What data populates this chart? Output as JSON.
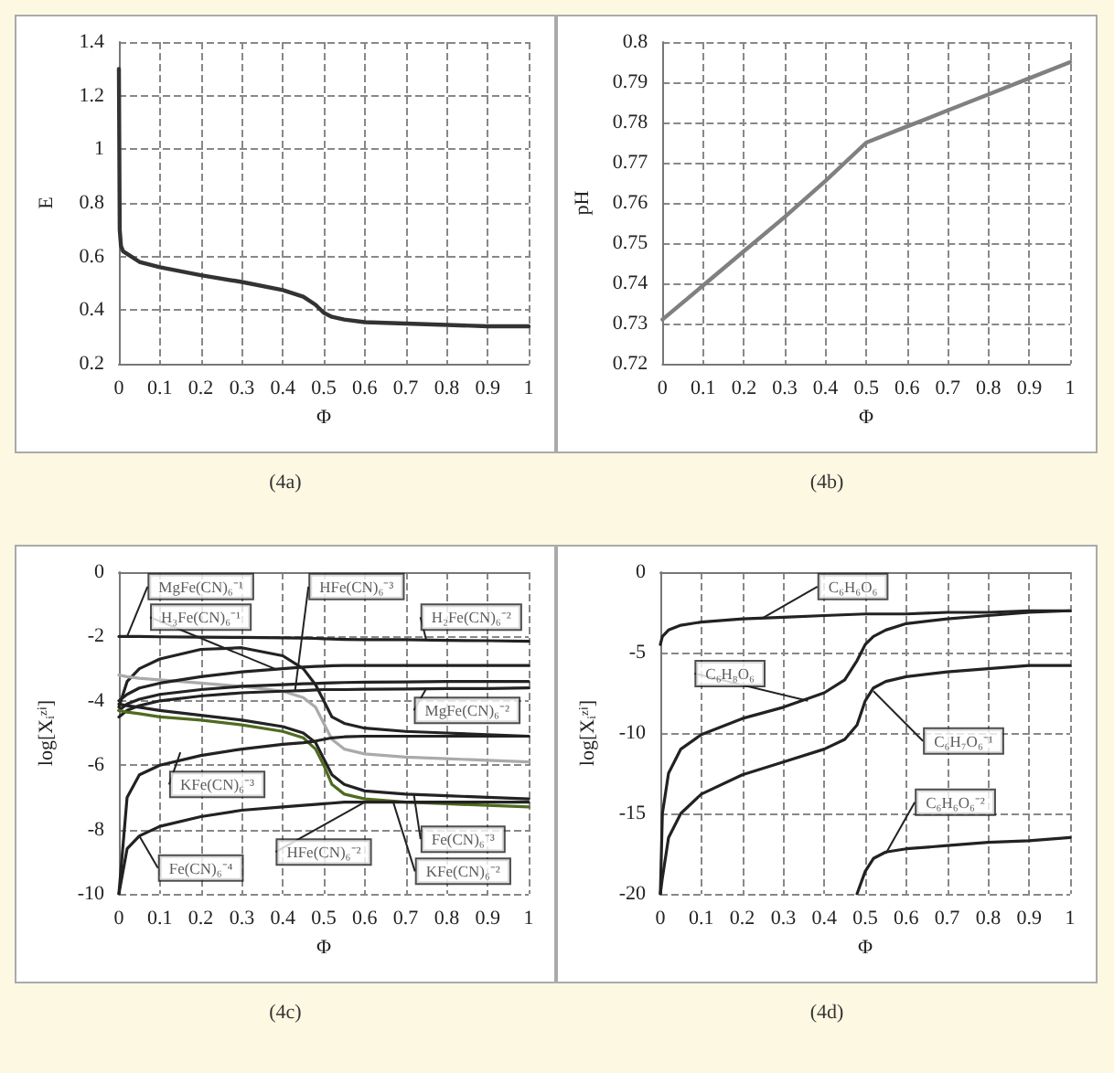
{
  "chart_data": [
    {
      "type": "line",
      "xlabel": "Φ",
      "ylabel": "E",
      "annotations": [
        "(4a)"
      ],
      "grid": true,
      "marker": "none",
      "line_style": "solid",
      "xlim": [
        0,
        1
      ],
      "xticks": [
        0,
        0.1,
        0.2,
        0.3,
        0.4,
        0.5,
        0.6,
        0.7,
        0.8,
        0.9,
        1
      ],
      "ylim": [
        0.2,
        1.4
      ],
      "yticks": [
        0.2,
        0.4,
        0.6,
        0.8,
        1,
        1.2,
        1.4
      ],
      "series": [
        {
          "color": "#333333",
          "x": [
            0,
            0.002,
            0.005,
            0.01,
            0.03,
            0.05,
            0.1,
            0.2,
            0.3,
            0.4,
            0.45,
            0.48,
            0.5,
            0.52,
            0.55,
            0.6,
            0.7,
            0.8,
            0.9,
            1
          ],
          "values": [
            1.3,
            0.7,
            0.64,
            0.62,
            0.6,
            0.58,
            0.56,
            0.53,
            0.505,
            0.475,
            0.45,
            0.42,
            0.39,
            0.375,
            0.365,
            0.355,
            0.35,
            0.345,
            0.34,
            0.34
          ]
        }
      ]
    },
    {
      "type": "line",
      "xlabel": "Φ",
      "ylabel": "pH",
      "annotations": [
        "(4b)"
      ],
      "grid": true,
      "marker": "none",
      "line_style": "solid",
      "xlim": [
        0,
        1
      ],
      "xticks": [
        0,
        0.1,
        0.2,
        0.3,
        0.4,
        0.5,
        0.6,
        0.7,
        0.8,
        0.9,
        1
      ],
      "ylim": [
        0.72,
        0.8
      ],
      "yticks": [
        0.72,
        0.73,
        0.74,
        0.75,
        0.76,
        0.77,
        0.78,
        0.79,
        0.8
      ],
      "series": [
        {
          "color": "#808080",
          "x": [
            0,
            0.1,
            0.2,
            0.3,
            0.4,
            0.5,
            0.6,
            0.7,
            0.8,
            0.9,
            1
          ],
          "values": [
            0.731,
            0.7395,
            0.748,
            0.7565,
            0.7655,
            0.775,
            0.779,
            0.783,
            0.787,
            0.791,
            0.795
          ]
        }
      ]
    },
    {
      "type": "line",
      "xlabel": "Φ",
      "ylabel": "log[Xᵢᶻⁱ]",
      "grid": true,
      "marker": "none",
      "line_style": "solid",
      "annotations": [
        "(4c)",
        {
          "text": "MgFe(CN)₆⁻¹",
          "x": 0.02,
          "y": -2
        },
        {
          "text": "H₃Fe(CN)₆⁻¹",
          "x": 0.38,
          "y": -3
        },
        {
          "text": "HFe(CN)₆⁻³",
          "x": 0.43,
          "y": -3.68
        },
        {
          "text": "H₂Fe(CN)₆⁻²",
          "x": 0.75,
          "y": -2.1
        },
        {
          "text": "MgFe(CN)₆⁻²",
          "x": 0.75,
          "y": -3.62
        },
        {
          "text": "KFe(CN)₆⁻³",
          "x": 0.15,
          "y": -5.6
        },
        {
          "text": "Fe(CN)₆⁻⁴",
          "x": 0.05,
          "y": -8.2
        },
        {
          "text": "HFe(CN)₆⁻²",
          "x": 0.6,
          "y": -7.15
        },
        {
          "text": "Fe(CN)₆⁻³",
          "x": 0.72,
          "y": -6.92
        },
        {
          "text": "KFe(CN)₆⁻²",
          "x": 0.67,
          "y": -7.17
        }
      ],
      "xlim": [
        0,
        1
      ],
      "xticks": [
        0,
        0.1,
        0.2,
        0.3,
        0.4,
        0.5,
        0.6,
        0.7,
        0.8,
        0.9,
        1
      ],
      "ylim": [
        -10,
        0
      ],
      "yticks": [
        -10,
        -8,
        -6,
        -4,
        -2,
        0
      ],
      "x": [
        0,
        0.02,
        0.05,
        0.1,
        0.2,
        0.3,
        0.4,
        0.45,
        0.48,
        0.5,
        0.52,
        0.55,
        0.6,
        0.7,
        0.8,
        0.9,
        1
      ],
      "series": [
        {
          "color": "#222222",
          "values": [
            -2.0,
            -2.0,
            -2.0,
            -2.01,
            -2.02,
            -2.03,
            -2.04,
            -2.05,
            -2.06,
            -2.07,
            -2.08,
            -2.09,
            -2.1,
            -2.1,
            -2.12,
            -2.13,
            -2.15
          ]
        },
        {
          "color": "#222222",
          "values": [
            -4.2,
            -3.4,
            -3.0,
            -2.7,
            -2.4,
            -2.35,
            -2.6,
            -3.0,
            -3.5,
            -4.0,
            -4.5,
            -4.7,
            -4.85,
            -4.95,
            -5.0,
            -5.05,
            -5.1
          ]
        },
        {
          "color": "#aaaaaa",
          "values": [
            -3.2,
            -3.25,
            -3.3,
            -3.35,
            -3.45,
            -3.55,
            -3.7,
            -3.9,
            -4.2,
            -4.7,
            -5.2,
            -5.5,
            -5.65,
            -5.75,
            -5.8,
            -5.85,
            -5.9
          ]
        },
        {
          "color": "#222222",
          "values": [
            -4.0,
            -3.8,
            -3.6,
            -3.45,
            -3.25,
            -3.1,
            -3.0,
            -2.95,
            -2.93,
            -2.92,
            -2.91,
            -2.9,
            -2.9,
            -2.9,
            -2.9,
            -2.9,
            -2.9
          ]
        },
        {
          "color": "#222222",
          "values": [
            -4.5,
            -4.3,
            -4.15,
            -4.0,
            -3.85,
            -3.75,
            -3.7,
            -3.68,
            -3.66,
            -3.65,
            -3.65,
            -3.65,
            -3.64,
            -3.63,
            -3.62,
            -3.62,
            -3.6
          ]
        },
        {
          "color": "#222222",
          "values": [
            -4.3,
            -4.1,
            -3.95,
            -3.8,
            -3.65,
            -3.55,
            -3.5,
            -3.47,
            -3.46,
            -3.45,
            -3.44,
            -3.43,
            -3.42,
            -3.41,
            -3.4,
            -3.4,
            -3.4
          ]
        },
        {
          "color": "#222222",
          "values": [
            -4.1,
            -4.15,
            -4.2,
            -4.3,
            -4.45,
            -4.6,
            -4.8,
            -5.0,
            -5.3,
            -5.8,
            -6.3,
            -6.6,
            -6.8,
            -6.9,
            -6.95,
            -7.0,
            -7.05
          ]
        },
        {
          "color": "#4f6b1f",
          "values": [
            -4.3,
            -4.35,
            -4.4,
            -4.5,
            -4.6,
            -4.75,
            -4.95,
            -5.15,
            -5.5,
            -6.0,
            -6.6,
            -6.9,
            -7.05,
            -7.15,
            -7.2,
            -7.25,
            -7.3
          ]
        },
        {
          "color": "#222222",
          "values": [
            -10,
            -7.0,
            -6.3,
            -6.0,
            -5.7,
            -5.5,
            -5.35,
            -5.3,
            -5.25,
            -5.2,
            -5.15,
            -5.12,
            -5.1,
            -5.1,
            -5.1,
            -5.1,
            -5.1
          ]
        },
        {
          "color": "#222222",
          "values": [
            -10,
            -8.6,
            -8.2,
            -7.9,
            -7.6,
            -7.4,
            -7.3,
            -7.25,
            -7.22,
            -7.2,
            -7.18,
            -7.15,
            -7.15,
            -7.15,
            -7.15,
            -7.15,
            -7.15
          ]
        }
      ]
    },
    {
      "type": "line",
      "xlabel": "Φ",
      "ylabel": "log[Xᵢᶻⁱ]",
      "grid": true,
      "marker": "none",
      "line_style": "solid",
      "annotations": [
        "(4d)",
        {
          "text": "C₆H₆O₆",
          "x": 0.25,
          "y": -2.85
        },
        {
          "text": "C₆H₈O₆",
          "x": 0.36,
          "y": -8
        },
        {
          "text": "C₆H₇O₆⁻¹",
          "x": 0.52,
          "y": -7.4
        },
        {
          "text": "C₆H₆O₆⁻²",
          "x": 0.55,
          "y": -17.5
        }
      ],
      "xlim": [
        0,
        1
      ],
      "xticks": [
        0,
        0.1,
        0.2,
        0.3,
        0.4,
        0.5,
        0.6,
        0.7,
        0.8,
        0.9,
        1
      ],
      "ylim": [
        -20,
        0
      ],
      "yticks": [
        -20,
        -15,
        -10,
        -5,
        0
      ],
      "series": [
        {
          "color": "#222222",
          "x": [
            0,
            0.005,
            0.02,
            0.05,
            0.1,
            0.2,
            0.3,
            0.4,
            0.5,
            0.6,
            0.7,
            0.8,
            0.9,
            1
          ],
          "values": [
            -4.5,
            -4.0,
            -3.6,
            -3.3,
            -3.1,
            -2.9,
            -2.8,
            -2.7,
            -2.6,
            -2.6,
            -2.5,
            -2.5,
            -2.4,
            -2.4
          ]
        },
        {
          "color": "#222222",
          "x": [
            0,
            0.005,
            0.02,
            0.05,
            0.1,
            0.2,
            0.3,
            0.4,
            0.45,
            0.48,
            0.5,
            0.52,
            0.55,
            0.6,
            0.7,
            0.8,
            0.9,
            1
          ],
          "values": [
            -20,
            -15,
            -12.5,
            -11,
            -10.1,
            -9.1,
            -8.4,
            -7.5,
            -6.7,
            -5.5,
            -4.5,
            -4.0,
            -3.6,
            -3.2,
            -2.9,
            -2.7,
            -2.5,
            -2.4
          ]
        },
        {
          "color": "#222222",
          "x": [
            0,
            0.005,
            0.02,
            0.05,
            0.1,
            0.2,
            0.3,
            0.4,
            0.45,
            0.48,
            0.5,
            0.52,
            0.55,
            0.6,
            0.7,
            0.8,
            0.9,
            1
          ],
          "values": [
            -20,
            -19,
            -16.5,
            -15,
            -13.8,
            -12.6,
            -11.8,
            -11,
            -10.4,
            -9.5,
            -8,
            -7.2,
            -6.8,
            -6.5,
            -6.2,
            -6.0,
            -5.8,
            -5.8
          ]
        },
        {
          "color": "#222222",
          "x": [
            0.48,
            0.5,
            0.52,
            0.55,
            0.6,
            0.7,
            0.8,
            0.9,
            1
          ],
          "values": [
            -20,
            -18.6,
            -17.8,
            -17.4,
            -17.2,
            -17.0,
            -16.8,
            -16.7,
            -16.5
          ]
        }
      ]
    }
  ]
}
